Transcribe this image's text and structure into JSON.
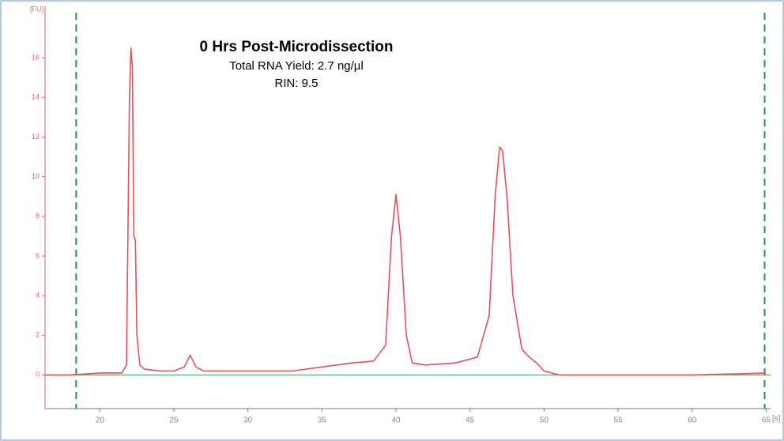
{
  "chart_data": {
    "type": "line",
    "title": "0 Hrs Post-Microdissection",
    "subtitle": [
      "Total RNA Yield: 2.7 ng/µl",
      "RIN: 9.5"
    ],
    "ylabel": "[FU]",
    "xlabel": "[s]",
    "color": "#e8505a",
    "x": [
      16.3,
      18,
      20,
      21.5,
      21.8,
      22.0,
      22.1,
      22.2,
      22.3,
      22.4,
      22.5,
      22.7,
      23,
      24,
      25,
      25.7,
      26.1,
      26.5,
      27,
      30,
      33,
      35,
      37,
      38.5,
      39.3,
      39.7,
      40.0,
      40.3,
      40.7,
      41.1,
      42,
      44,
      45.5,
      46.3,
      46.7,
      47.0,
      47.2,
      47.5,
      47.9,
      48.5,
      49,
      49.5,
      50,
      51,
      55,
      60,
      63,
      65
    ],
    "values": [
      0.0,
      0.0,
      0.1,
      0.1,
      0.5,
      14,
      16.5,
      15.5,
      7,
      6.8,
      2,
      0.5,
      0.3,
      0.2,
      0.2,
      0.4,
      1.0,
      0.4,
      0.2,
      0.2,
      0.2,
      0.4,
      0.6,
      0.7,
      1.5,
      7,
      9.1,
      7,
      2,
      0.6,
      0.5,
      0.6,
      0.9,
      3,
      9,
      11.5,
      11.3,
      9,
      4,
      1.3,
      0.9,
      0.6,
      0.2,
      0.0,
      0.0,
      0.0,
      0.05,
      0.1
    ],
    "marker_lines": [
      18.4,
      64.9
    ],
    "marker_color": "#2e8b57",
    "xlim": [
      16.3,
      65.3
    ],
    "ylim": [
      -1.7,
      18.6
    ],
    "xticks": [
      20,
      25,
      30,
      35,
      40,
      45,
      50,
      55,
      60,
      65
    ],
    "yticks": [
      0,
      2,
      4,
      6,
      8,
      10,
      12,
      14,
      16
    ]
  }
}
